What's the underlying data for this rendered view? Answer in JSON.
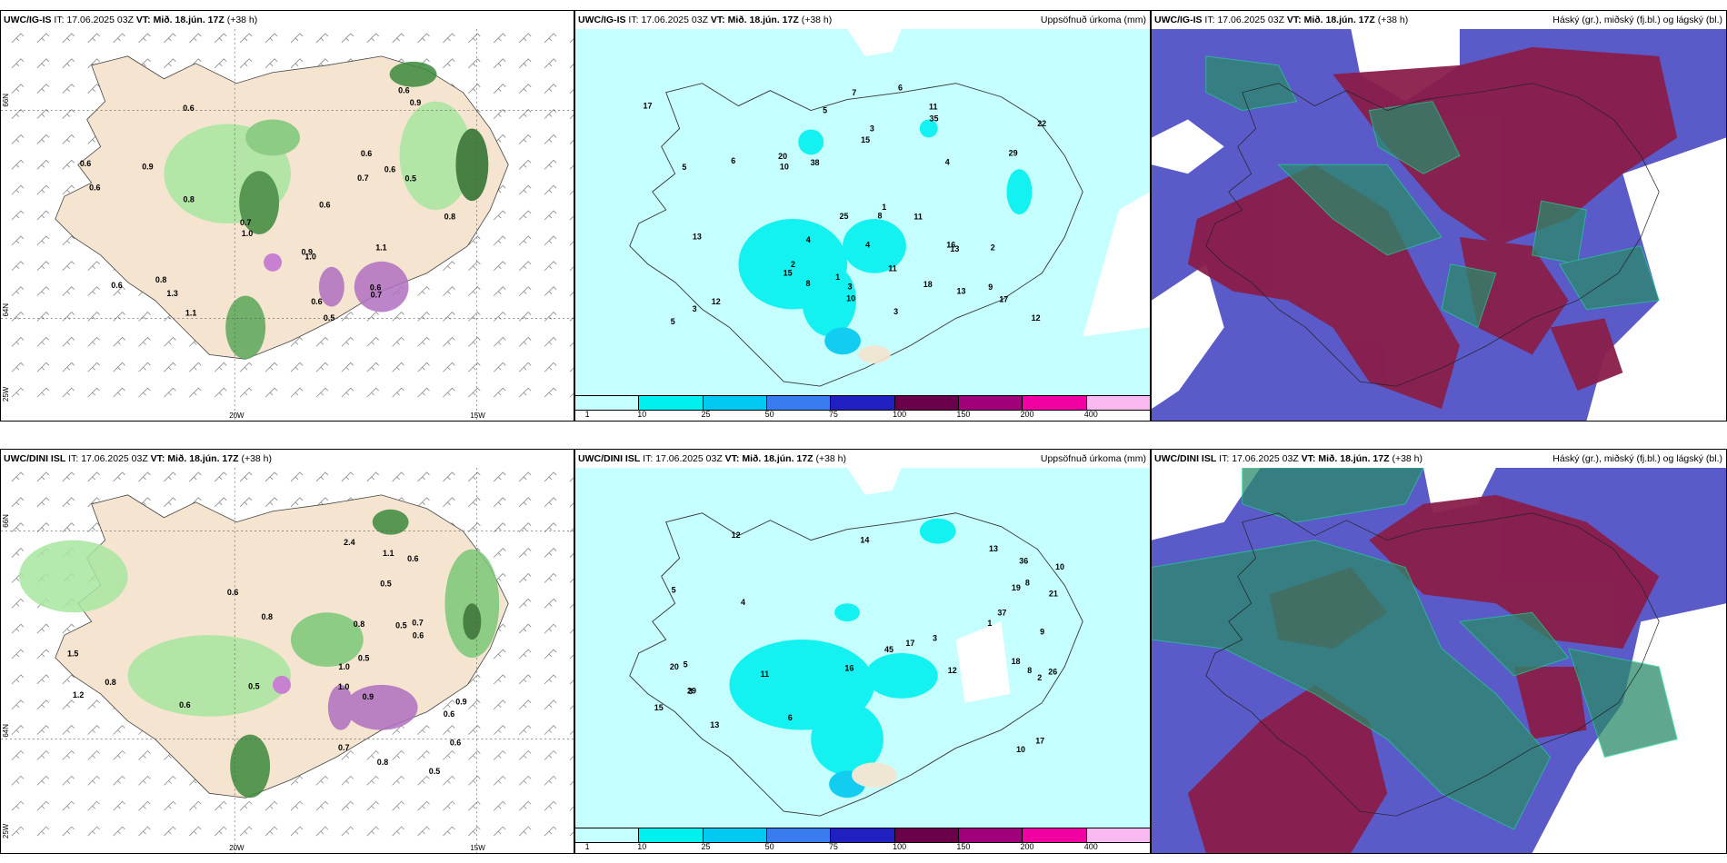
{
  "header_labels": {
    "it": "IT:",
    "vt": "VT:"
  },
  "rows": [
    {
      "model": "UWC/IG-IS",
      "it_value": "17.06.2025 03Z",
      "vt_value": "Mið. 18.jún. 17Z",
      "lead": "(+38 h)"
    },
    {
      "model": "UWC/DINI ISL",
      "it_value": "17.06.2025 03Z",
      "vt_value": "Mið. 18.jún. 17Z",
      "lead": "(+38 h)"
    }
  ],
  "precip_title": "Uppsöfnuð úrkoma (mm)",
  "cloud_title": "Háský (gr.), miðský (fj.bl.) og lágský (bl.)",
  "colorbar": {
    "labels": [
      "1",
      "10",
      "25",
      "50",
      "75",
      "100",
      "150",
      "200",
      "400"
    ],
    "colors": [
      "#c6ffff",
      "#00f0f0",
      "#00c8f0",
      "#3a7cf0",
      "#2020c0",
      "#6a004a",
      "#a0007a",
      "#f000a0",
      "#f8b8f0"
    ]
  },
  "grid_labels": {
    "lat_66": "66N",
    "lat_64": "64N",
    "lon_20": "20W",
    "lon_15": "15W",
    "lon_25": "25W"
  },
  "maps": {
    "p1_values": [
      "0.5",
      "0.6",
      "0.8",
      "0.9",
      "0.6",
      "0.6",
      "0.8",
      "0.8",
      "1.0",
      "1.3",
      "0.6",
      "0.6",
      "0.7",
      "0.9",
      "0.7",
      "0.6",
      "0.6",
      "0.9",
      "1.1",
      "0.5",
      "0.6",
      "1.0",
      "1.1",
      "0.7",
      "0.6",
      "0.6"
    ],
    "p2_values": [
      "3",
      "2",
      "1",
      "4",
      "5",
      "6",
      "9",
      "11",
      "13",
      "15",
      "12",
      "10",
      "8",
      "7",
      "18",
      "20",
      "16",
      "13",
      "25",
      "22",
      "17",
      "12",
      "10",
      "11",
      "13",
      "35",
      "38",
      "15",
      "29",
      "11",
      "17",
      "4",
      "3",
      "5",
      "8",
      "3",
      "3",
      "4",
      "5",
      "1",
      "6",
      "2"
    ],
    "p4_values": [
      "1.0",
      "0.9",
      "0.5",
      "0.6",
      "0.7",
      "0.5",
      "0.7",
      "0.8",
      "0.6",
      "0.8",
      "0.5",
      "1.0",
      "1.2",
      "0.9",
      "0.6",
      "0.5",
      "0.6",
      "0.8",
      "1.1",
      "0.6",
      "0.5",
      "1.5",
      "0.8",
      "2.4",
      "0.6"
    ],
    "p5_values": [
      "4",
      "3",
      "5",
      "6",
      "8",
      "9",
      "10",
      "11",
      "13",
      "12",
      "14",
      "15",
      "17",
      "21",
      "18",
      "16",
      "26",
      "20",
      "29",
      "37",
      "36",
      "13",
      "17",
      "12",
      "10",
      "45",
      "19",
      "8",
      "5",
      "3",
      "2",
      "1"
    ]
  }
}
